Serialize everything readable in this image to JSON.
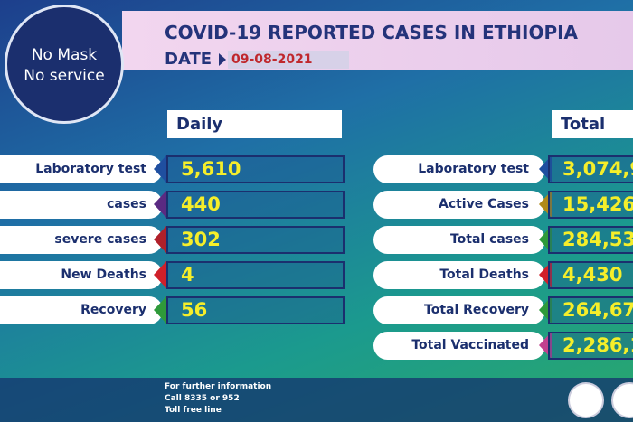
{
  "badge": {
    "line1": "No Mask",
    "line2": "No service"
  },
  "header": {
    "title": "COVID-19 REPORTED CASES IN ETHIOPIA",
    "date_label": "DATE",
    "date": "09-08-2021"
  },
  "daily": {
    "title": "Daily",
    "rows": [
      {
        "label": "Laboratory test",
        "value": "5,610"
      },
      {
        "label": "cases",
        "value": "440"
      },
      {
        "label": "severe cases",
        "value": "302"
      },
      {
        "label": "New Deaths",
        "value": "4"
      },
      {
        "label": "Recovery",
        "value": "56"
      }
    ]
  },
  "total": {
    "title": "Total",
    "rows": [
      {
        "label": "Laboratory test",
        "value": "3,074,9"
      },
      {
        "label": "Active Cases",
        "value": "15,426"
      },
      {
        "label": "Total cases",
        "value": "284,53"
      },
      {
        "label": "Total Deaths",
        "value": "4,430"
      },
      {
        "label": "Total Recovery",
        "value": "264,67"
      },
      {
        "label": "Total Vaccinated",
        "value": "2,286,1"
      }
    ]
  },
  "footer": {
    "lines": [
      "For further information",
      "Call 8335 or 952",
      "Toll free line"
    ]
  }
}
